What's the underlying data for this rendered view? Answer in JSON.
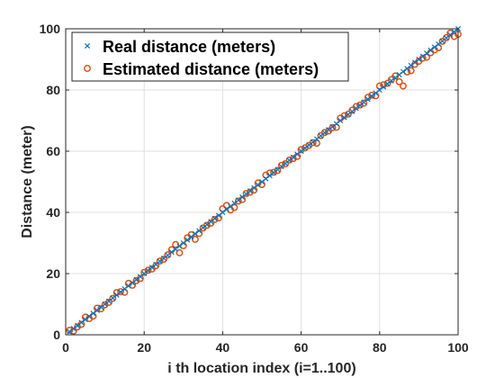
{
  "chart_data": {
    "type": "scatter",
    "title": "",
    "xlabel": "i th location index (i=1..100)",
    "ylabel": "Distance (meter)",
    "xlim": [
      0,
      100
    ],
    "ylim": [
      0,
      100
    ],
    "xticks": [
      0,
      20,
      40,
      60,
      80,
      100
    ],
    "yticks": [
      0,
      20,
      40,
      60,
      80,
      100
    ],
    "grid": true,
    "legend_position": "top-left",
    "x": [
      1,
      2,
      3,
      4,
      5,
      6,
      7,
      8,
      9,
      10,
      11,
      12,
      13,
      14,
      15,
      16,
      17,
      18,
      19,
      20,
      21,
      22,
      23,
      24,
      25,
      26,
      27,
      28,
      29,
      30,
      31,
      32,
      33,
      34,
      35,
      36,
      37,
      38,
      39,
      40,
      41,
      42,
      43,
      44,
      45,
      46,
      47,
      48,
      49,
      50,
      51,
      52,
      53,
      54,
      55,
      56,
      57,
      58,
      59,
      60,
      61,
      62,
      63,
      64,
      65,
      66,
      67,
      68,
      69,
      70,
      71,
      72,
      73,
      74,
      75,
      76,
      77,
      78,
      79,
      80,
      81,
      82,
      83,
      84,
      85,
      86,
      87,
      88,
      89,
      90,
      91,
      92,
      93,
      94,
      95,
      96,
      97,
      98,
      99,
      100
    ],
    "series": [
      {
        "name": "Real distance (meters)",
        "marker": "x",
        "color": "#0072BD",
        "values": [
          1,
          2,
          3,
          4,
          5,
          6,
          7,
          8,
          9,
          10,
          11,
          12,
          13,
          14,
          15,
          16,
          17,
          18,
          19,
          20,
          21,
          22,
          23,
          24,
          25,
          26,
          27,
          28,
          29,
          30,
          31,
          32,
          33,
          34,
          35,
          36,
          37,
          38,
          39,
          40,
          41,
          42,
          43,
          44,
          45,
          46,
          47,
          48,
          49,
          50,
          51,
          52,
          53,
          54,
          55,
          56,
          57,
          58,
          59,
          60,
          61,
          62,
          63,
          64,
          65,
          66,
          67,
          68,
          69,
          70,
          71,
          72,
          73,
          74,
          75,
          76,
          77,
          78,
          79,
          80,
          81,
          82,
          83,
          84,
          85,
          86,
          87,
          88,
          89,
          90,
          91,
          92,
          93,
          94,
          95,
          96,
          97,
          98,
          99,
          100
        ]
      },
      {
        "name": "Estimated distance (meters)",
        "marker": "circle",
        "color": "#D95319",
        "values": [
          1.5,
          1.2,
          2.6,
          3.4,
          5.8,
          5.3,
          6.1,
          8.7,
          8.5,
          9.8,
          10.6,
          11.9,
          13.8,
          14.1,
          13.9,
          16.8,
          16.2,
          17.7,
          18.4,
          20.4,
          21.1,
          21.5,
          22.6,
          24.1,
          24.7,
          26.1,
          27.8,
          29.5,
          26.8,
          29.1,
          31.7,
          32.7,
          31.2,
          33.1,
          34.9,
          35.8,
          36.5,
          37.7,
          38.2,
          41.2,
          42.3,
          40.8,
          41.6,
          43.7,
          44.2,
          46.2,
          46.6,
          47.3,
          49.6,
          49.1,
          52.2,
          52.9,
          53.1,
          53.7,
          55.4,
          55.9,
          57.1,
          57.6,
          58.3,
          60.5,
          61.1,
          61.9,
          62.8,
          62.6,
          65.1,
          66.1,
          66.6,
          67.7,
          67.8,
          70.8,
          71.6,
          72.1,
          73.4,
          74.6,
          75.1,
          75.7,
          77.6,
          78.3,
          78.1,
          81.3,
          81.7,
          82.2,
          83.4,
          84.6,
          82.7,
          81.3,
          85.9,
          86.3,
          88.4,
          89.4,
          90.4,
          90.7,
          92.2,
          93.1,
          93.8,
          95.9,
          97.1,
          98.6,
          97.5,
          98.2
        ]
      }
    ]
  }
}
